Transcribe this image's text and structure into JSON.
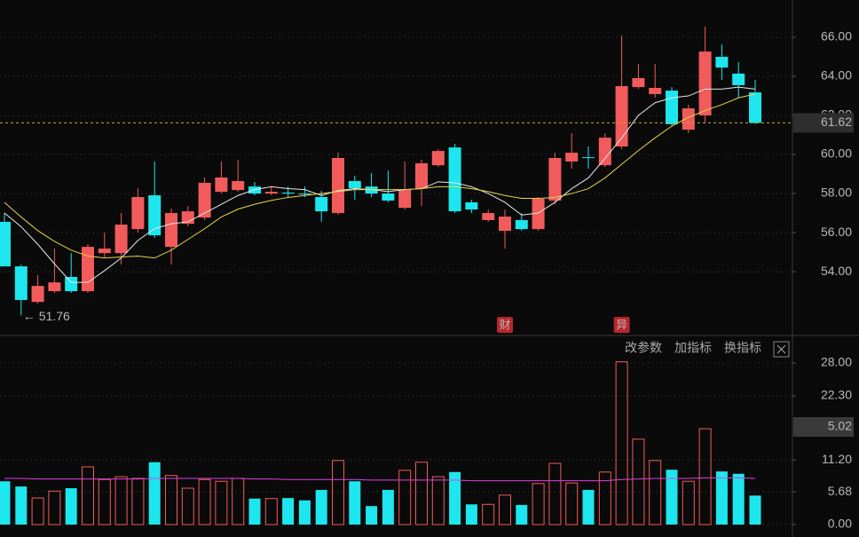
{
  "chart_data": [
    {
      "type": "candlestick",
      "open": [
        56.55,
        54.27,
        52.45,
        53.0,
        53.73,
        53.0,
        54.95,
        54.95,
        56.18,
        57.91,
        55.27,
        56.45,
        56.77,
        58.09,
        58.18,
        58.36,
        58.0,
        58.05,
        58.0,
        57.82,
        57.0,
        58.64,
        58.36,
        58.0,
        57.27,
        58.27,
        59.45,
        60.36,
        57.55,
        56.64,
        56.09,
        56.64,
        56.18,
        57.64,
        59.64,
        59.86,
        59.45,
        60.41,
        63.45,
        63.09,
        63.27,
        61.27,
        62.0,
        65.0,
        64.14,
        63.18
      ],
      "high": [
        57.0,
        54.36,
        53.82,
        55.18,
        54.95,
        55.41,
        56.0,
        57.0,
        58.27,
        59.64,
        57.23,
        57.36,
        58.82,
        59.64,
        59.73,
        58.59,
        58.36,
        58.36,
        58.36,
        58.14,
        60.09,
        58.91,
        59.05,
        59.18,
        59.64,
        59.73,
        60.27,
        60.55,
        57.68,
        57.18,
        57.18,
        57.0,
        57.82,
        60.09,
        61.09,
        60.41,
        61.09,
        66.09,
        64.64,
        64.64,
        63.45,
        62.55,
        66.55,
        65.64,
        64.73,
        63.82
      ],
      "low": [
        54.27,
        51.76,
        52.36,
        52.91,
        52.91,
        52.91,
        54.73,
        54.36,
        56.0,
        55.73,
        54.36,
        56.32,
        56.64,
        58.0,
        58.09,
        57.91,
        57.91,
        57.82,
        57.82,
        56.55,
        56.91,
        57.68,
        57.82,
        57.55,
        57.18,
        57.36,
        59.36,
        57.0,
        57.0,
        56.55,
        55.18,
        56.09,
        56.09,
        57.45,
        59.27,
        59.27,
        59.36,
        60.27,
        63.36,
        62.91,
        61.45,
        61.09,
        61.64,
        63.82,
        62.91,
        61.55
      ],
      "close": [
        54.27,
        52.55,
        53.27,
        53.45,
        53.0,
        55.27,
        55.18,
        56.41,
        57.82,
        55.86,
        57.0,
        57.09,
        58.55,
        58.82,
        58.64,
        58.0,
        58.09,
        58.0,
        57.95,
        57.09,
        59.82,
        58.27,
        58.0,
        57.64,
        58.18,
        59.55,
        60.18,
        57.09,
        57.18,
        57.0,
        56.82,
        56.18,
        57.73,
        59.82,
        60.09,
        59.82,
        60.86,
        63.5,
        63.91,
        63.41,
        61.55,
        62.36,
        65.27,
        64.45,
        63.55,
        61.62
      ],
      "up_color": "#f25b5b",
      "down_color": "#1de6ee",
      "series": [
        {
          "color": "#e8e8e8",
          "values": [
            57.0,
            56.3,
            55.4,
            54.4,
            53.45,
            53.45,
            54.05,
            54.7,
            55.6,
            56.2,
            56.45,
            56.55,
            57.0,
            57.45,
            57.9,
            58.2,
            58.35,
            58.25,
            58.2,
            57.9,
            58.15,
            58.25,
            58.2,
            58.1,
            58.2,
            58.25,
            58.6,
            58.55,
            58.35,
            58.0,
            57.55,
            56.9,
            57.0,
            57.55,
            58.25,
            58.8,
            59.8,
            60.85,
            62.0,
            62.65,
            62.9,
            63.0,
            63.35,
            63.35,
            63.45,
            63.35
          ]
        },
        {
          "color": "#e8d44a",
          "values": [
            57.55,
            56.8,
            56.1,
            55.55,
            55.1,
            54.8,
            54.7,
            54.75,
            54.8,
            54.7,
            55.1,
            55.65,
            56.2,
            56.8,
            57.2,
            57.45,
            57.65,
            57.8,
            57.9,
            58.0,
            58.1,
            58.2,
            58.2,
            58.2,
            58.2,
            58.25,
            58.35,
            58.35,
            58.25,
            58.1,
            57.9,
            57.75,
            57.75,
            57.8,
            58.0,
            58.25,
            58.8,
            59.5,
            60.2,
            60.85,
            61.45,
            61.9,
            62.25,
            62.55,
            62.9,
            63.1
          ]
        }
      ],
      "low_marker": 51.76,
      "events": [
        "财",
        "异"
      ],
      "ylim": [
        50.73,
        67.91
      ],
      "yticks": [
        {
          "value": 54,
          "label": "54.00"
        },
        {
          "value": 56,
          "label": "56.00"
        },
        {
          "value": 58,
          "label": "58.00"
        },
        {
          "value": 60,
          "label": "60.00"
        },
        {
          "value": 62,
          "label": "62.00"
        },
        {
          "value": 64,
          "label": "64.00"
        },
        {
          "value": 66,
          "label": "66.00"
        }
      ],
      "grid": true
    },
    {
      "type": "volume",
      "values": [
        7.5,
        6.6,
        4.6,
        5.8,
        6.3,
        10.0,
        7.8,
        8.3,
        8.0,
        10.8,
        8.5,
        6.3,
        7.8,
        7.5,
        8.0,
        4.5,
        4.5,
        4.6,
        4.2,
        6.0,
        11.1,
        7.5,
        3.2,
        6.0,
        9.4,
        10.8,
        8.3,
        9.1,
        3.5,
        3.5,
        5.1,
        3.4,
        7.1,
        10.6,
        7.2,
        6.0,
        9.1,
        28.2,
        14.8,
        11.1,
        9.5,
        7.5,
        16.6,
        9.2,
        8.8,
        5.02
      ],
      "series": [
        {
          "color": "#e040e0",
          "values": [
            8.0,
            8.0,
            7.9,
            7.9,
            7.9,
            7.9,
            7.9,
            7.9,
            7.9,
            8.0,
            8.0,
            8.0,
            8.0,
            8.0,
            8.0,
            7.9,
            7.9,
            7.8,
            7.8,
            7.8,
            7.8,
            7.8,
            7.7,
            7.7,
            7.7,
            7.7,
            7.7,
            7.7,
            7.6,
            7.6,
            7.6,
            7.6,
            7.6,
            7.6,
            7.6,
            7.6,
            7.6,
            7.8,
            7.9,
            8.0,
            8.0,
            8.0,
            8.1,
            8.1,
            8.1,
            8.0
          ]
        }
      ],
      "ylim": [
        0,
        28.6
      ],
      "yticks": [
        {
          "value": 0,
          "label": "0.00"
        },
        5.68,
        {
          "value": 11.2,
          "label": "11.20"
        },
        {
          "value": 22.3,
          "label": "22.30"
        },
        {
          "value": 28,
          "label": "28.00"
        }
      ],
      "grid": true
    }
  ],
  "toolbar": [
    "改参数",
    "加指标",
    "换指标"
  ]
}
